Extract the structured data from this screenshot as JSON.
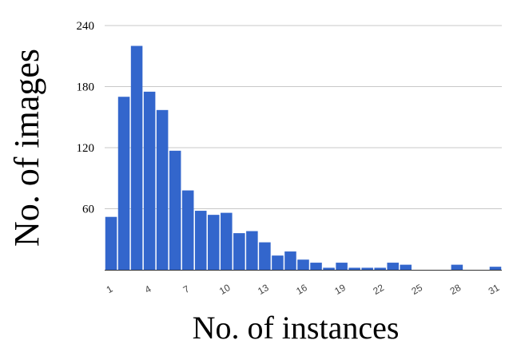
{
  "chart_data": {
    "type": "bar",
    "xlabel": "No. of instances",
    "ylabel": "No. of images",
    "ylim": [
      0,
      240
    ],
    "yticks": [
      60,
      120,
      180,
      240
    ],
    "xticks": [
      1,
      4,
      7,
      10,
      13,
      16,
      19,
      22,
      25,
      28,
      31
    ],
    "grid": true,
    "color": "#3366cc",
    "x": [
      1,
      2,
      3,
      4,
      5,
      6,
      7,
      8,
      9,
      10,
      11,
      12,
      13,
      14,
      15,
      16,
      17,
      18,
      19,
      20,
      21,
      22,
      23,
      24,
      25,
      26,
      27,
      28,
      29,
      30,
      31
    ],
    "values": [
      52,
      170,
      220,
      175,
      157,
      117,
      78,
      58,
      54,
      56,
      36,
      38,
      27,
      14,
      18,
      10,
      7,
      2,
      7,
      2,
      2,
      2,
      7,
      5,
      0,
      0,
      0,
      5,
      0,
      0,
      3
    ]
  }
}
